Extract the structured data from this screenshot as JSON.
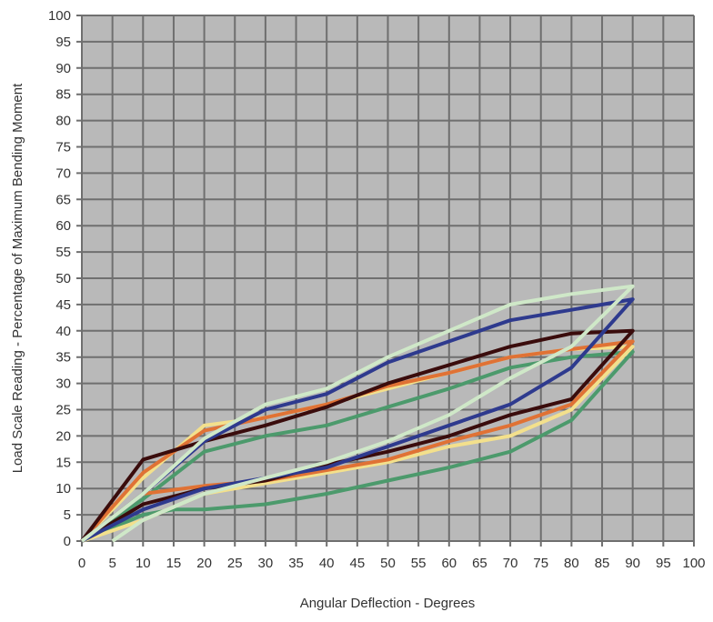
{
  "chart_data": {
    "type": "line",
    "title": "",
    "xlabel": "Angular Deflection - Degrees",
    "ylabel": "Load Scale Reading - Percentage of Maximum Bending Moment",
    "xlim": [
      0,
      100
    ],
    "ylim": [
      0,
      100
    ],
    "xticks": [
      0,
      5,
      10,
      15,
      20,
      25,
      30,
      35,
      40,
      45,
      50,
      55,
      60,
      65,
      70,
      75,
      80,
      85,
      90,
      95,
      100
    ],
    "yticks": [
      0,
      5,
      10,
      15,
      20,
      25,
      30,
      35,
      40,
      45,
      50,
      55,
      60,
      65,
      70,
      75,
      80,
      85,
      90,
      95,
      100
    ],
    "grid": true,
    "background": "#b9b9b9",
    "series": [
      {
        "name": "green",
        "color": "#4c9a6c",
        "points": [
          [
            0,
            0
          ],
          [
            10,
            5
          ],
          [
            15,
            6
          ],
          [
            20,
            6
          ],
          [
            30,
            7
          ],
          [
            40,
            9
          ],
          [
            50,
            11.5
          ],
          [
            60,
            14
          ],
          [
            70,
            17
          ],
          [
            80,
            23
          ],
          [
            90,
            36
          ],
          [
            80,
            35
          ],
          [
            70,
            33
          ],
          [
            60,
            29
          ],
          [
            50,
            25.5
          ],
          [
            40,
            22
          ],
          [
            30,
            20
          ],
          [
            20,
            17
          ],
          [
            10,
            8
          ],
          [
            0,
            0
          ]
        ]
      },
      {
        "name": "yellow",
        "color": "#f3e08c",
        "points": [
          [
            0,
            0
          ],
          [
            10,
            4
          ],
          [
            20,
            9
          ],
          [
            30,
            11
          ],
          [
            40,
            13
          ],
          [
            50,
            15
          ],
          [
            60,
            18
          ],
          [
            70,
            20
          ],
          [
            80,
            25
          ],
          [
            90,
            37
          ],
          [
            80,
            36.5
          ],
          [
            70,
            35
          ],
          [
            60,
            32
          ],
          [
            50,
            29
          ],
          [
            40,
            26
          ],
          [
            30,
            23.5
          ],
          [
            20,
            22
          ],
          [
            10,
            12
          ],
          [
            0,
            0
          ]
        ]
      },
      {
        "name": "orange",
        "color": "#e07235",
        "points": [
          [
            0,
            0
          ],
          [
            10,
            9
          ],
          [
            20,
            10.5
          ],
          [
            30,
            11.5
          ],
          [
            40,
            13.5
          ],
          [
            50,
            15.5
          ],
          [
            60,
            19
          ],
          [
            70,
            22
          ],
          [
            80,
            26
          ],
          [
            90,
            38
          ],
          [
            80,
            36.5
          ],
          [
            70,
            35
          ],
          [
            60,
            32
          ],
          [
            50,
            29.5
          ],
          [
            40,
            26
          ],
          [
            30,
            23.5
          ],
          [
            20,
            21
          ],
          [
            10,
            13
          ],
          [
            0,
            0
          ]
        ]
      },
      {
        "name": "dark-brown",
        "color": "#3a0c0c",
        "points": [
          [
            0,
            0
          ],
          [
            10,
            7
          ],
          [
            20,
            10
          ],
          [
            30,
            11.5
          ],
          [
            40,
            14.5
          ],
          [
            50,
            17
          ],
          [
            60,
            20
          ],
          [
            70,
            24
          ],
          [
            80,
            27
          ],
          [
            90,
            40
          ],
          [
            80,
            39.5
          ],
          [
            70,
            37
          ],
          [
            60,
            33.5
          ],
          [
            50,
            30
          ],
          [
            40,
            25.5
          ],
          [
            30,
            22
          ],
          [
            20,
            19
          ],
          [
            10,
            15.5
          ],
          [
            0,
            0
          ]
        ]
      },
      {
        "name": "blue",
        "color": "#2e3a8e",
        "points": [
          [
            0,
            0
          ],
          [
            10,
            6
          ],
          [
            20,
            10
          ],
          [
            30,
            12
          ],
          [
            40,
            14
          ],
          [
            50,
            18
          ],
          [
            60,
            22
          ],
          [
            70,
            26
          ],
          [
            80,
            33
          ],
          [
            90,
            46
          ],
          [
            80,
            44
          ],
          [
            70,
            42
          ],
          [
            60,
            38
          ],
          [
            50,
            34
          ],
          [
            40,
            28
          ],
          [
            30,
            25
          ],
          [
            20,
            19
          ],
          [
            10,
            9
          ],
          [
            0,
            0
          ]
        ]
      },
      {
        "name": "light-green",
        "color": "#cfe8c8",
        "points": [
          [
            5,
            0
          ],
          [
            10,
            4
          ],
          [
            20,
            9
          ],
          [
            30,
            12
          ],
          [
            40,
            15
          ],
          [
            50,
            19
          ],
          [
            60,
            24
          ],
          [
            70,
            31
          ],
          [
            80,
            37
          ],
          [
            90,
            48.5
          ],
          [
            80,
            47
          ],
          [
            70,
            45
          ],
          [
            60,
            40
          ],
          [
            50,
            35
          ],
          [
            40,
            29
          ],
          [
            30,
            26
          ],
          [
            20,
            19.5
          ],
          [
            10,
            9
          ],
          [
            0,
            0
          ]
        ]
      }
    ]
  }
}
